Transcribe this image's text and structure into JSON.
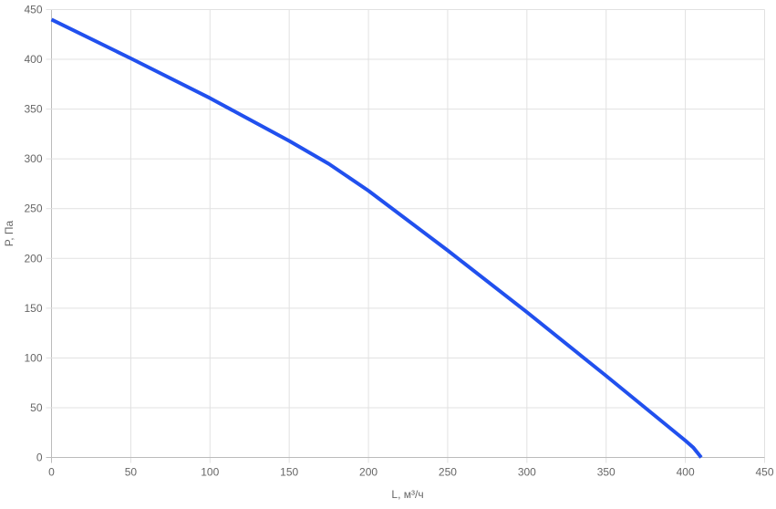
{
  "chart_data": {
    "type": "line",
    "title": "",
    "xlabel": "L, м³/ч",
    "ylabel": "P, Па",
    "xlim": [
      0,
      450
    ],
    "ylim": [
      0,
      450
    ],
    "xticks": [
      0,
      50,
      100,
      150,
      200,
      250,
      300,
      350,
      400,
      450
    ],
    "yticks": [
      0,
      50,
      100,
      150,
      200,
      250,
      300,
      350,
      400,
      450
    ],
    "grid": true,
    "legend": "none",
    "series": [
      {
        "color": "#2150ee",
        "x": [
          0,
          50,
          100,
          150,
          175,
          200,
          250,
          300,
          350,
          400,
          405,
          410
        ],
        "y": [
          440,
          401,
          361,
          318,
          295,
          268,
          208,
          146,
          82,
          17,
          10,
          0
        ]
      }
    ]
  }
}
